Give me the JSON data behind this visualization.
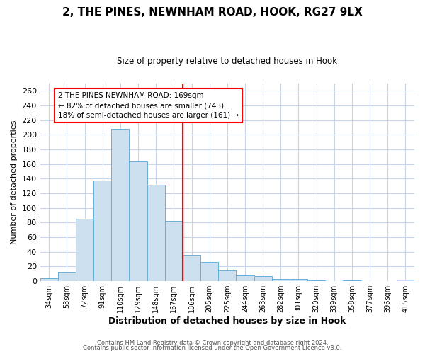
{
  "title": "2, THE PINES, NEWNHAM ROAD, HOOK, RG27 9LX",
  "subtitle": "Size of property relative to detached houses in Hook",
  "xlabel": "Distribution of detached houses by size in Hook",
  "ylabel": "Number of detached properties",
  "bar_color": "#cce0f0",
  "bar_edge_color": "#6aaed6",
  "vline_x": 7.5,
  "vline_color": "red",
  "annotation_title": "2 THE PINES NEWNHAM ROAD: 169sqm",
  "annotation_line1": "← 82% of detached houses are smaller (743)",
  "annotation_line2": "18% of semi-detached houses are larger (161) →",
  "categories": [
    "34sqm",
    "53sqm",
    "72sqm",
    "91sqm",
    "110sqm",
    "129sqm",
    "148sqm",
    "167sqm",
    "186sqm",
    "205sqm",
    "225sqm",
    "244sqm",
    "263sqm",
    "282sqm",
    "301sqm",
    "320sqm",
    "339sqm",
    "358sqm",
    "377sqm",
    "396sqm",
    "415sqm"
  ],
  "values": [
    4,
    13,
    85,
    137,
    208,
    163,
    132,
    82,
    36,
    26,
    15,
    8,
    7,
    3,
    3,
    1,
    0,
    1,
    0,
    0,
    2
  ],
  "ylim": [
    0,
    270
  ],
  "yticks": [
    0,
    20,
    40,
    60,
    80,
    100,
    120,
    140,
    160,
    180,
    200,
    220,
    240,
    260
  ],
  "footer1": "Contains HM Land Registry data © Crown copyright and database right 2024.",
  "footer2": "Contains public sector information licensed under the Open Government Licence v3.0.",
  "background_color": "#ffffff",
  "grid_color": "#c8d4e8"
}
